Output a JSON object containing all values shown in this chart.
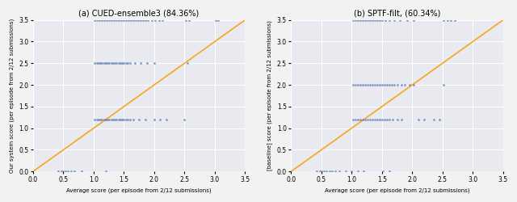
{
  "subplot1": {
    "title": "(a) CUED-ensemble3 (84.36%)",
    "ylabel": "Our system score (per episode from 2/12 submissions)",
    "xlabel": "Average score (per episode from 2/12 submissions)",
    "xlim": [
      0.0,
      3.5
    ],
    "ylim": [
      0.0,
      3.5
    ],
    "xticks": [
      0.0,
      0.5,
      1.0,
      1.5,
      2.0,
      2.5,
      3.0,
      3.5
    ],
    "yticks": [
      0.0,
      0.5,
      1.0,
      1.5,
      2.0,
      2.5,
      3.0,
      3.5
    ],
    "scatter_color": "#5c7db5",
    "line_color": "#f5a623",
    "scatter_x_at_y0": [
      0.42,
      0.47,
      0.5,
      0.53,
      0.58,
      0.63,
      0.68,
      0.8,
      1.2
    ],
    "scatter_x_at_y12": [
      1.02,
      1.05,
      1.08,
      1.11,
      1.14,
      1.17,
      1.2,
      1.23,
      1.26,
      1.29,
      1.32,
      1.35,
      1.38,
      1.41,
      1.44,
      1.47,
      1.5,
      1.53,
      1.56,
      1.6,
      1.65,
      1.75,
      1.85,
      2.0,
      2.1,
      2.2,
      2.5
    ],
    "scatter_x_at_y25": [
      1.02,
      1.05,
      1.08,
      1.11,
      1.14,
      1.17,
      1.2,
      1.23,
      1.26,
      1.29,
      1.32,
      1.35,
      1.38,
      1.41,
      1.44,
      1.47,
      1.5,
      1.53,
      1.56,
      1.6,
      1.68,
      1.78,
      1.88,
      2.0,
      2.55
    ],
    "scatter_x_at_y35": [
      1.02,
      1.06,
      1.1,
      1.14,
      1.18,
      1.22,
      1.26,
      1.3,
      1.34,
      1.38,
      1.42,
      1.46,
      1.5,
      1.54,
      1.58,
      1.62,
      1.66,
      1.7,
      1.74,
      1.78,
      1.82,
      1.86,
      1.9,
      1.96,
      2.02,
      2.08,
      2.14,
      2.52,
      2.58,
      3.02,
      3.06
    ]
  },
  "subplot2": {
    "title": "(b) SPTF-filt, (60.34%)",
    "ylabel": "[baseline] score (per episode from 2/12 submissions)",
    "xlabel": "Average score (per episode from 2/12 submissions)",
    "xlim": [
      0.0,
      3.5
    ],
    "ylim": [
      0.0,
      3.5
    ],
    "xticks": [
      0.0,
      0.5,
      1.0,
      1.5,
      2.0,
      2.5,
      3.0,
      3.5
    ],
    "yticks": [
      0.0,
      0.5,
      1.0,
      1.5,
      2.0,
      2.5,
      3.0,
      3.5
    ],
    "scatter_color": "#5c7db5",
    "line_color": "#f5a623",
    "scatter_x_at_y0": [
      0.42,
      0.47,
      0.5,
      0.54,
      0.58,
      0.63,
      0.68,
      0.73,
      0.8,
      0.9,
      1.0,
      1.1,
      1.2,
      1.52,
      1.62
    ],
    "scatter_x_at_y12": [
      1.02,
      1.06,
      1.1,
      1.14,
      1.18,
      1.22,
      1.26,
      1.3,
      1.34,
      1.38,
      1.42,
      1.46,
      1.5,
      1.54,
      1.58,
      1.62,
      1.68,
      1.75,
      1.82,
      2.1,
      2.2,
      2.35,
      2.45
    ],
    "scatter_x_at_y20": [
      1.02,
      1.06,
      1.1,
      1.14,
      1.18,
      1.22,
      1.26,
      1.3,
      1.34,
      1.38,
      1.42,
      1.46,
      1.5,
      1.54,
      1.58,
      1.62,
      1.66,
      1.7,
      1.76,
      1.82,
      1.88,
      1.95,
      2.02,
      2.52
    ],
    "scatter_x_at_y35": [
      1.02,
      1.06,
      1.1,
      1.14,
      1.18,
      1.22,
      1.26,
      1.3,
      1.34,
      1.38,
      1.42,
      1.46,
      1.5,
      1.56,
      1.62,
      1.7,
      1.8,
      1.92,
      2.02,
      2.52,
      2.58,
      2.64,
      2.7
    ]
  },
  "bg_color": "#e8eaf0",
  "grid_color": "#ffffff",
  "fig_bg_color": "#f2f2f2",
  "scatter_size": 4,
  "scatter_alpha": 0.75,
  "line_width": 1.2,
  "title_fontsize": 7,
  "label_fontsize": 5.0,
  "tick_fontsize": 5.5
}
